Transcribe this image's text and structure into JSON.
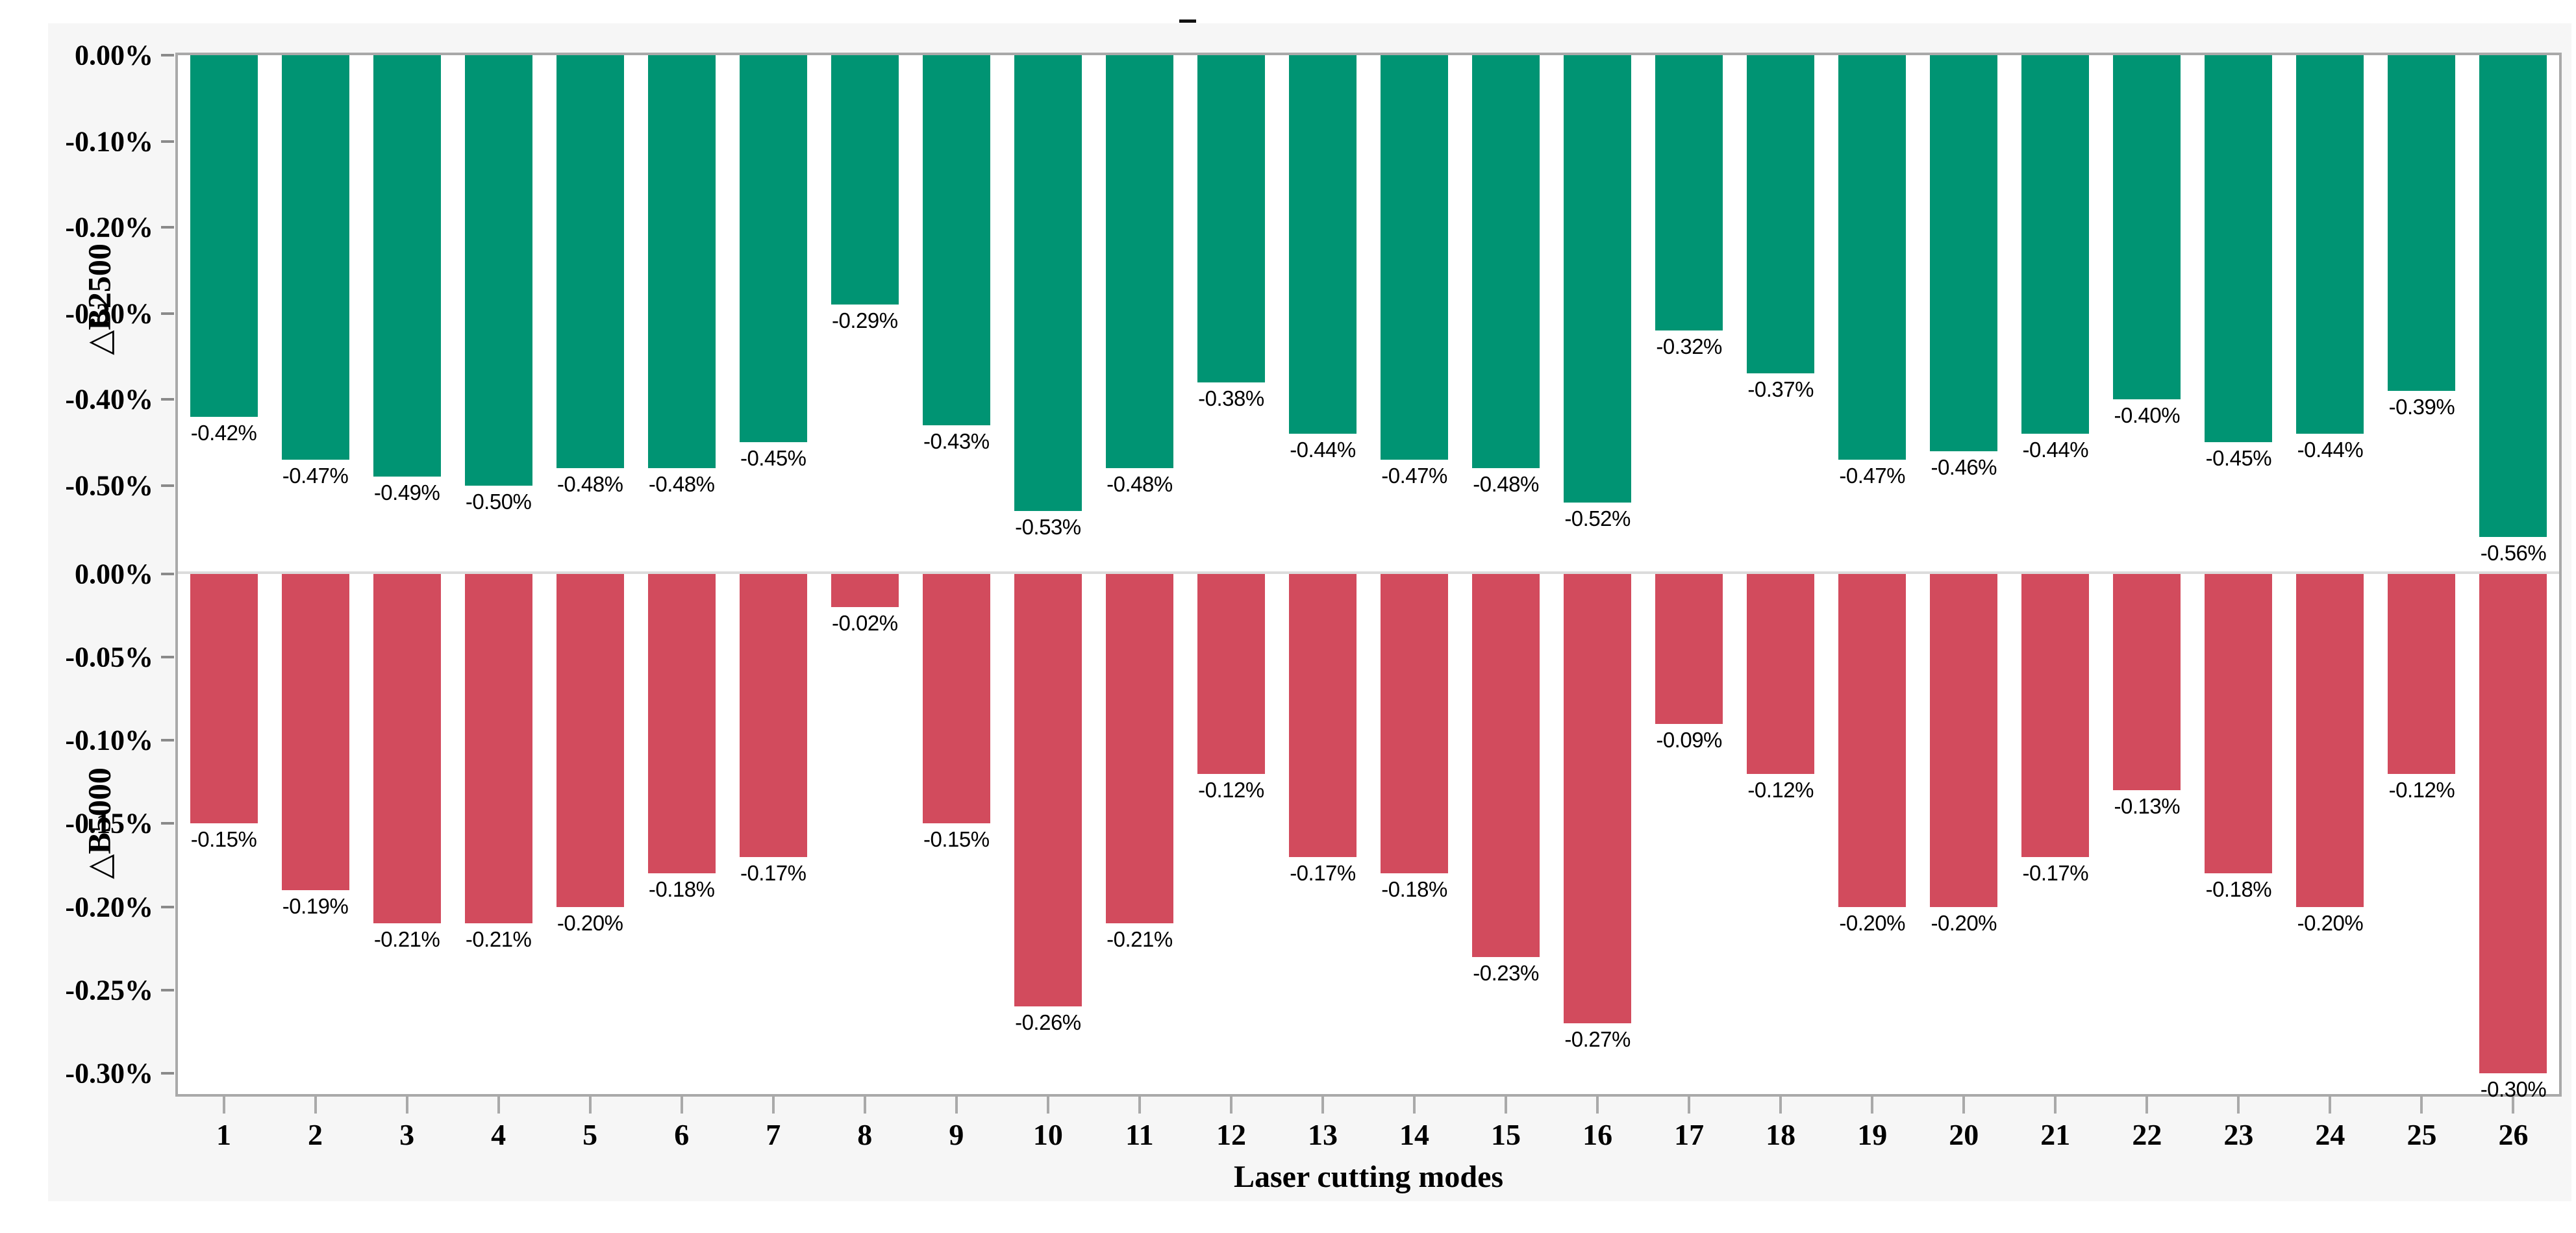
{
  "figure": {
    "title_dash": "-",
    "background": "#f6f6f6",
    "frame_border_color": "#a9a9a9"
  },
  "xaxis": {
    "title": "Laser cutting modes",
    "categories": [
      "1",
      "2",
      "3",
      "4",
      "5",
      "6",
      "7",
      "8",
      "9",
      "10",
      "11",
      "12",
      "13",
      "14",
      "15",
      "16",
      "17",
      "18",
      "19",
      "20",
      "21",
      "22",
      "23",
      "24",
      "25",
      "26"
    ]
  },
  "chart_data": [
    {
      "type": "bar",
      "name": "B2500",
      "ylabel": "△B2500",
      "color": "#009473",
      "legend": "none",
      "grid": false,
      "categories": [
        "1",
        "2",
        "3",
        "4",
        "5",
        "6",
        "7",
        "8",
        "9",
        "10",
        "11",
        "12",
        "13",
        "14",
        "15",
        "16",
        "17",
        "18",
        "19",
        "20",
        "21",
        "22",
        "23",
        "24",
        "25",
        "26"
      ],
      "values": [
        -0.42,
        -0.47,
        -0.49,
        -0.5,
        -0.48,
        -0.48,
        -0.45,
        -0.29,
        -0.43,
        -0.53,
        -0.48,
        -0.38,
        -0.44,
        -0.47,
        -0.48,
        -0.52,
        -0.32,
        -0.37,
        -0.47,
        -0.46,
        -0.44,
        -0.4,
        -0.45,
        -0.44,
        -0.39,
        -0.56
      ],
      "labels": [
        "-0.42%",
        "-0.47%",
        "-0.49%",
        "-0.50%",
        "-0.48%",
        "-0.48%",
        "-0.45%",
        "-0.29%",
        "-0.43%",
        "-0.53%",
        "-0.48%",
        "-0.38%",
        "-0.44%",
        "-0.47%",
        "-0.48%",
        "-0.52%",
        "-0.32%",
        "-0.37%",
        "-0.47%",
        "-0.46%",
        "-0.44%",
        "-0.40%",
        "-0.45%",
        "-0.44%",
        "-0.39%",
        "-0.56%"
      ],
      "yticks": {
        "values": [
          0,
          -0.1,
          -0.2,
          -0.3,
          -0.4,
          -0.5
        ],
        "labels": [
          "0.00%",
          "-0.10%",
          "-0.20%",
          "-0.30%",
          "-0.40%",
          "-0.50%"
        ]
      },
      "ylim": [
        0,
        -0.6
      ]
    },
    {
      "type": "bar",
      "name": "B5000",
      "ylabel": "△B5000",
      "color": "#d24b5d",
      "legend": "none",
      "grid": false,
      "categories": [
        "1",
        "2",
        "3",
        "4",
        "5",
        "6",
        "7",
        "8",
        "9",
        "10",
        "11",
        "12",
        "13",
        "14",
        "15",
        "16",
        "17",
        "18",
        "19",
        "20",
        "21",
        "22",
        "23",
        "24",
        "25",
        "26"
      ],
      "values": [
        -0.15,
        -0.19,
        -0.21,
        -0.21,
        -0.2,
        -0.18,
        -0.17,
        -0.02,
        -0.15,
        -0.26,
        -0.21,
        -0.12,
        -0.17,
        -0.18,
        -0.23,
        -0.27,
        -0.09,
        -0.12,
        -0.2,
        -0.2,
        -0.17,
        -0.13,
        -0.18,
        -0.2,
        -0.12,
        -0.3
      ],
      "labels": [
        "-0.15%",
        "-0.19%",
        "-0.21%",
        "-0.21%",
        "-0.20%",
        "-0.18%",
        "-0.17%",
        "-0.02%",
        "-0.15%",
        "-0.26%",
        "-0.21%",
        "-0.12%",
        "-0.17%",
        "-0.18%",
        "-0.23%",
        "-0.27%",
        "-0.09%",
        "-0.12%",
        "-0.20%",
        "-0.20%",
        "-0.17%",
        "-0.13%",
        "-0.18%",
        "-0.20%",
        "-0.12%",
        "-0.30%"
      ],
      "yticks": {
        "values": [
          0,
          -0.05,
          -0.1,
          -0.15,
          -0.2,
          -0.25,
          -0.3
        ],
        "labels": [
          "0.00%",
          "-0.05%",
          "-0.10%",
          "-0.15%",
          "-0.20%",
          "-0.25%",
          "-0.30%"
        ]
      },
      "ylim": [
        0,
        -0.3125
      ]
    }
  ]
}
